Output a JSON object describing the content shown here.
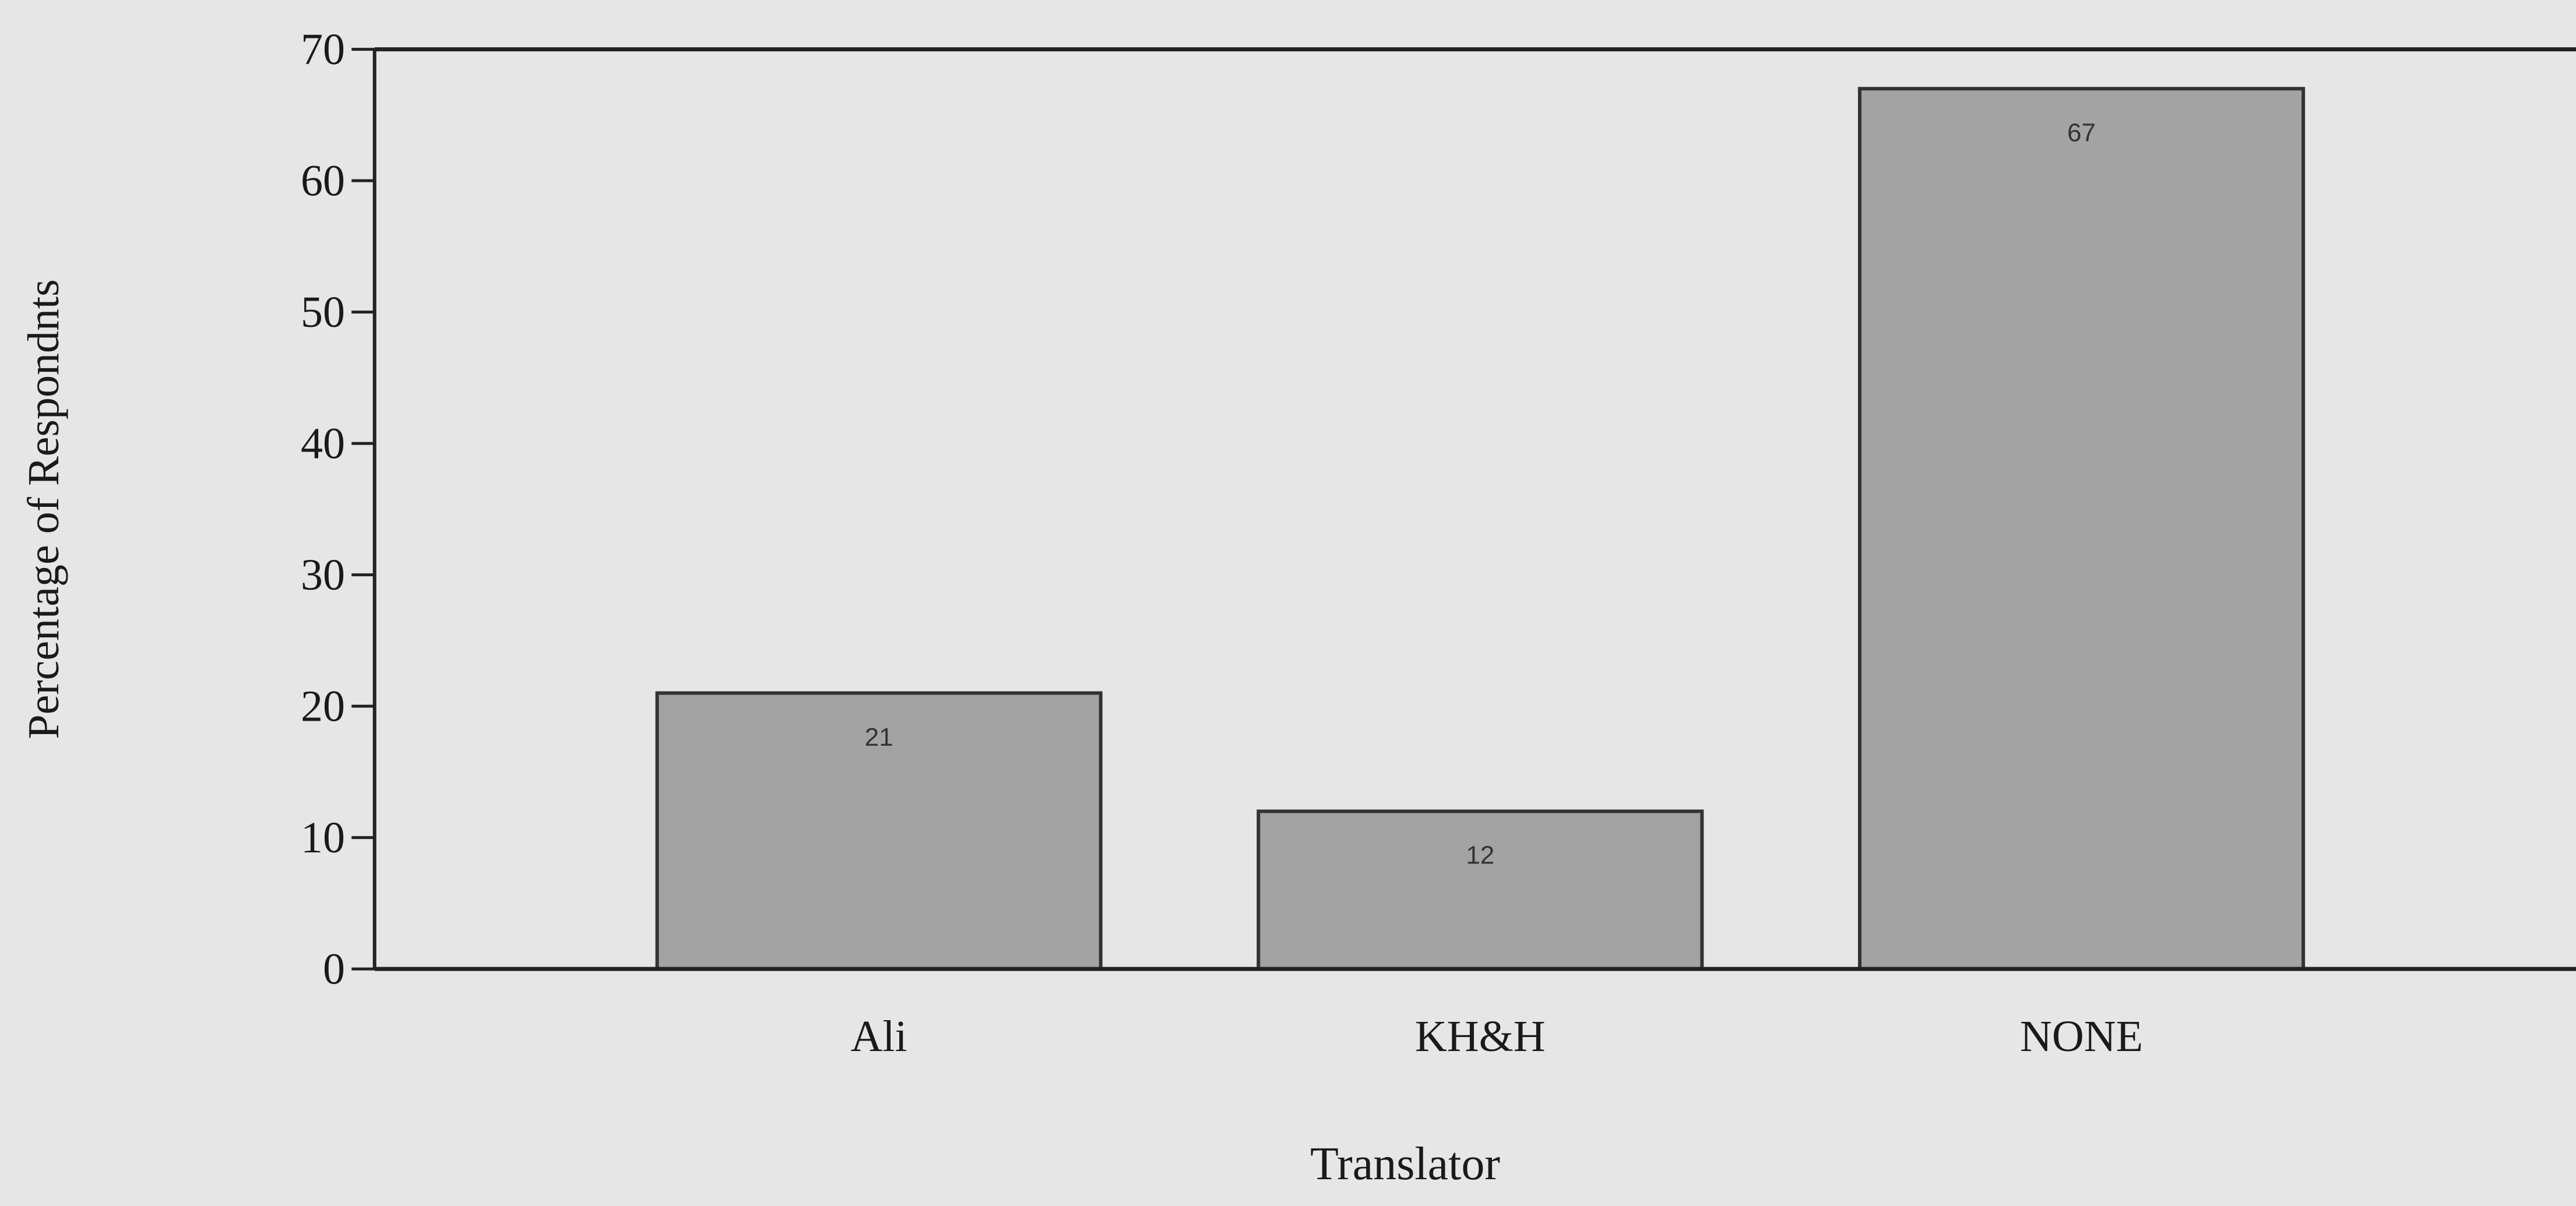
{
  "chart_data": {
    "type": "bar",
    "x_label": "Translator",
    "y_label": "Percentage of Respondnts",
    "categories": [
      "Ali",
      "KH&H",
      "NONE"
    ],
    "values": [
      21,
      12,
      67
    ],
    "color": "#a3a3a3",
    "ylim": [
      0,
      70
    ],
    "yticks": [
      0,
      10,
      20,
      30,
      40,
      50,
      60,
      70
    ],
    "grid": false
  }
}
